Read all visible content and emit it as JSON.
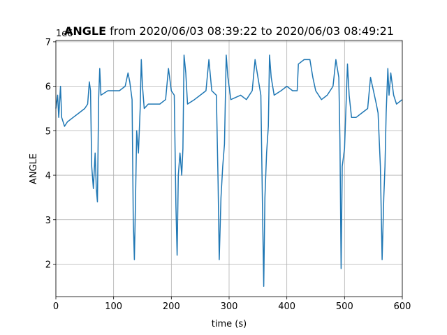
{
  "chart_data": {
    "type": "line",
    "title_bold": "ANGLE",
    "title_rest": "from 2020/06/03 08:39:22 to 2020/06/03 08:49:21",
    "y_offset_label": "1e6",
    "xlabel": "time (s)",
    "ylabel": "ANGLE",
    "color": "#1f77b4",
    "grid": true,
    "xlim": [
      0,
      600
    ],
    "xticks": [
      0,
      100,
      200,
      300,
      400,
      500,
      600
    ],
    "ylim": [
      1.27,
      7.03
    ],
    "yticks": [
      2,
      3,
      4,
      5,
      6,
      7
    ],
    "x": [
      0,
      3,
      5,
      8,
      10,
      15,
      20,
      30,
      40,
      50,
      55,
      58,
      60,
      62,
      65,
      68,
      70,
      72,
      74,
      76,
      78,
      90,
      100,
      110,
      120,
      125,
      128,
      132,
      134,
      136,
      138,
      140,
      143,
      146,
      148,
      150,
      153,
      160,
      170,
      180,
      190,
      195,
      200,
      205,
      208,
      210,
      212,
      215,
      218,
      220,
      222,
      225,
      228,
      240,
      250,
      260,
      265,
      270,
      278,
      281,
      283,
      286,
      289,
      292,
      295,
      298,
      303,
      320,
      330,
      340,
      345,
      350,
      355,
      358,
      360,
      362,
      365,
      368,
      370,
      373,
      378,
      390,
      400,
      410,
      418,
      420,
      430,
      440,
      445,
      450,
      460,
      470,
      480,
      485,
      490,
      492,
      494,
      496,
      500,
      505,
      508,
      512,
      520,
      530,
      540,
      545,
      550,
      555,
      558,
      562,
      565,
      568,
      570,
      572,
      575,
      577,
      580,
      585,
      590,
      600
    ],
    "values": [
      5.5,
      5.8,
      5.3,
      6.0,
      5.3,
      5.1,
      5.2,
      5.3,
      5.4,
      5.5,
      5.6,
      6.1,
      5.9,
      4.2,
      3.7,
      4.5,
      3.7,
      3.4,
      5.7,
      6.4,
      5.8,
      5.9,
      5.9,
      5.9,
      6.0,
      6.3,
      6.1,
      5.7,
      3.0,
      2.1,
      3.5,
      5.0,
      4.5,
      5.5,
      6.6,
      6.0,
      5.5,
      5.6,
      5.6,
      5.6,
      5.7,
      6.4,
      5.9,
      5.8,
      3.3,
      2.2,
      4.0,
      4.5,
      4.0,
      4.6,
      6.7,
      6.3,
      5.6,
      5.7,
      5.8,
      5.9,
      6.6,
      5.9,
      5.8,
      3.8,
      2.1,
      3.5,
      4.2,
      4.7,
      6.7,
      6.2,
      5.7,
      5.8,
      5.7,
      5.9,
      6.6,
      6.2,
      5.8,
      3.2,
      1.5,
      3.5,
      4.5,
      5.1,
      6.7,
      6.2,
      5.8,
      5.9,
      6.0,
      5.9,
      5.9,
      6.5,
      6.6,
      6.6,
      6.2,
      5.9,
      5.7,
      5.8,
      6.0,
      6.6,
      6.2,
      4.8,
      1.9,
      4.2,
      4.6,
      6.5,
      5.8,
      5.3,
      5.3,
      5.4,
      5.5,
      6.2,
      5.9,
      5.6,
      5.4,
      4.2,
      2.1,
      3.5,
      4.2,
      5.4,
      6.4,
      5.8,
      6.3,
      5.8,
      5.6,
      5.7
    ]
  }
}
